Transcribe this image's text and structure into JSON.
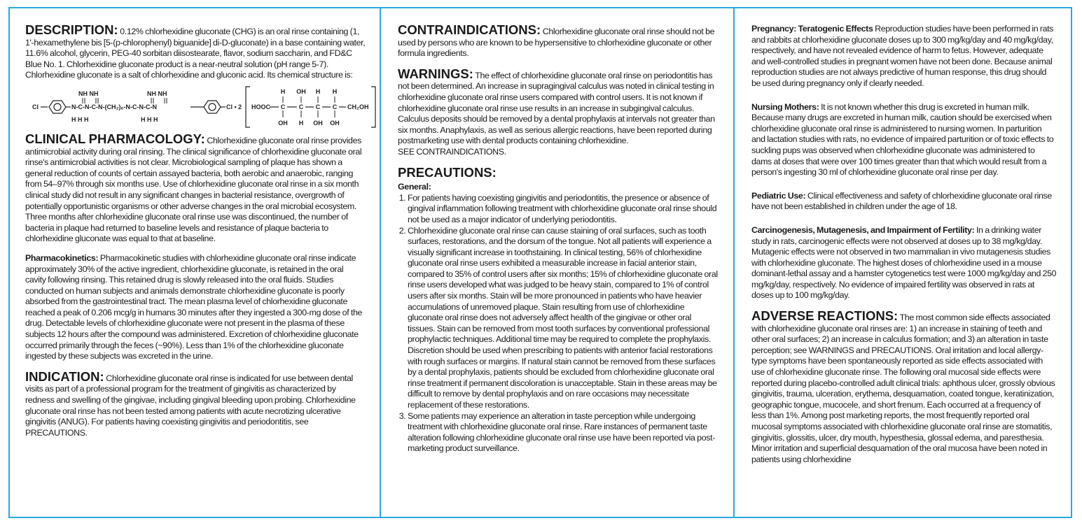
{
  "col1": {
    "description": {
      "heading": "DESCRIPTION:",
      "text": "0.12% chlorhexidine gluconate (CHG) is an oral rinse containing (1, 1'-hexamethylene bis [5-(p-chlorophenyl) biguanide] di-D-gluconate) in a base containing water, 11.6% alcohol, glycerin, PEG-40 sorbitan diisostearate, flavor, sodium saccharin, and FD&C Blue No. 1. Chlorhexidine gluconate product is a near-neutral solution (pH range 5-7). Chlorhexidine gluconate is a salt of chlorhexidine and gluconic acid. Its chemical structure is:"
    },
    "chemical_structure": {
      "left_chain": "Cl–C6H4–N–C–N–C–N–(CH2)6–N–C–N–C–N–C6H4–Cl • 2",
      "bracket": "HOOC–C–C–C–C–CH2OH",
      "labels": {
        "nh": "NH",
        "h": "H",
        "cl": "Cl",
        "ch2": "(CH",
        "ch2_sub": "2",
        "ch2_6": ")6",
        "dot2": "Cl • 2",
        "hooc": "HOOC",
        "ch2oh": "CH2OH",
        "oh": "OH",
        "c": "C",
        "n": "N"
      }
    },
    "clinical_pharmacology": {
      "heading": "CLINICAL PHARMACOLOGY:",
      "text": "Chlorhexidine gluconate oral rinse provides antimicrobial activity during oral rinsing. The clinical significance of chlorhexidine gluconate oral rinse's antimicrobial activities is not clear. Microbiological sampling of plaque has shown a general reduction of counts of certain assayed bacteria, both aerobic and anaerobic, ranging from 54–97% through six months use. Use of chlorhexidine gluconate oral rinse in a six month clinical study did not result in any significant changes in bacterial resistance, overgrowth of potentially opportunistic organisms or other adverse changes in the oral microbial ecosystem. Three months after chlorhexidine gluconate oral rinse use was discontinued, the number of bacteria in plaque had returned to baseline levels and resistance of plaque bacteria to chlorhexidine gluconate was equal to that at baseline."
    },
    "pharmacokinetics": {
      "heading": "Pharmacokinetics:",
      "text": "Pharmacokinetic studies with chlorhexidine gluconate oral rinse indicate approximately 30% of the active ingredient, chlorhexidine gluconate, is retained in the oral cavity following rinsing. This retained drug is slowly released into the oral fluids. Studies conducted on human subjects and animals demonstrate chlorhexidine gluconate is poorly absorbed from the gastrointestinal tract. The mean plasma level of chlorhexidine gluconate reached a peak of 0.206 mcg/g in humans 30 minutes after they ingested a 300-mg dose of the drug. Detectable levels of chlorhexidine gluconate were not present in the plasma of these subjects 12 hours after the compound was administered. Excretion of chlorhexidine gluconate occurred primarily through the feces (~90%). Less than 1% of the chlorhexidine gluconate ingested by these subjects was excreted in the urine."
    },
    "indication": {
      "heading": "INDICATION:",
      "text": "Chlorhexidine gluconate oral rinse is indicated for use between dental visits as part of a professional program for the treatment of gingivitis as characterized by redness and swelling of the gingivae, including gingival bleeding upon probing. Chlorhexidine gluconate oral rinse has not been tested among patients with acute necrotizing ulcerative gingivitis (ANUG). For patients having coexisting gingivitis and periodontitis, see PRECAUTIONS."
    }
  },
  "col2": {
    "contraindications": {
      "heading": "CONTRAINDICATIONS:",
      "text": "Chlorhexidine gluconate oral rinse should not be used by persons who are known to be hypersensitive to chlorhexidine gluconate or other formula ingredients."
    },
    "warnings": {
      "heading": "WARNINGS:",
      "text": "The effect of chlorhexidine gluconate oral rinse on periodontitis has not been determined. An increase in supragingival calculus was noted in clinical testing in chlorhexidine gluconate oral rinse users compared with control users. It is not known if chlorhexidine gluconate oral rinse use results in an increase in subgingival calculus. Calculus deposits should be removed by a dental prophylaxis at intervals not greater than six months. Anaphylaxis, as well as serious allergic reactions, have been reported during postmarketing use with dental products containing chlorhexidine.",
      "see": "SEE CONTRAINDICATIONS."
    },
    "precautions": {
      "heading": "PRECAUTIONS:",
      "general": "General:",
      "items": [
        "For patients having coexisting gingivitis and periodontitis, the presence or absence of gingival inflammation following treatment with chlorhexidine gluconate oral rinse should not be used as a major indicator of underlying periodontitis.",
        "Chlorhexidine gluconate oral rinse can cause staining of oral surfaces, such as tooth surfaces, restorations, and the dorsum of the tongue. Not all patients will experience a visually significant increase in toothstaining. In clinical testing, 56% of chlorhexidine gluconate oral rinse users exhibited a measurable increase in facial anterior stain, compared to 35% of control users after six months; 15% of chlorhexidine gluconate oral rinse users developed what was judged to be heavy stain, compared to 1% of control users after six months. Stain will be more pronounced in patients who have heavier accumulations of unremoved plaque. Stain resulting from use of chlorhexidine gluconate oral rinse does not adversely affect health of the gingivae or other oral tissues. Stain can be removed from most tooth surfaces by conventional professional prophylactic techniques. Additional time may be required to complete the prophylaxis. Discretion should be used when prescribing to patients with anterior facial restorations with rough surfaces or margins. If natural stain cannot be removed from these surfaces by a dental prophylaxis, patients should be excluded from chlorhexidine gluconate oral rinse treatment if permanent discoloration is unacceptable. Stain in these areas may be difficult to remove by dental prophylaxis and on rare occasions may necessitate replacement of these restorations.",
        "Some patients may experience an alteration in taste perception while undergoing treatment with chlorhexidine gluconate oral rinse. Rare instances of permanent taste alteration following chlorhexidine gluconate oral rinse use have been reported via post-marketing product surveillance."
      ]
    }
  },
  "col3": {
    "pregnancy": {
      "heading": "Pregnancy: Teratogenic Effects",
      "text": "Reproduction studies have been performed in rats and rabbits at chlorhexidine gluconate doses up to 300 mg/kg/day and 40 mg/kg/day, respectively, and have not revealed evidence of harm to fetus. However, adequate and well-controlled studies in pregnant women have not been done. Because animal reproduction studies are not always predictive of human response, this drug should be used during pregnancy only if clearly needed."
    },
    "nursing": {
      "heading": "Nursing Mothers:",
      "text": "It is not known whether this drug is excreted in human milk. Because many drugs are excreted in human milk, caution should be exercised when chlorhexidine gluconate oral rinse is administered to nursing women. In parturition and lactation studies with rats, no evidence of impaired parturition or of toxic effects to suckling pups was observed when chlorhexidine gluconate was administered to dams at doses that were over 100 times greater than that which would result from a person's ingesting 30 ml of chlorhexidine gluconate oral rinse per day."
    },
    "pediatric": {
      "heading": "Pediatric Use:",
      "text": "Clinical effectiveness and safety of chlorhexidine gluconate oral rinse have not been established in children under the age of 18."
    },
    "carcinogenesis": {
      "heading": "Carcinogenesis, Mutagenesis, and Impairment of Fertility:",
      "text": "In a drinking water study in rats, carcinogenic effects were not observed at doses up to 38 mg/kg/day. Mutagenic effects were not observed in two mammalian in vivo mutagenesis studies with chlorhexidine gluconate. The highest doses of chlorhexidine used in a mouse dominant-lethal assay and a hamster cytogenetics test were 1000 mg/kg/day and 250 mg/kg/day, respectively. No evidence of impaired fertility was observed in rats at doses up to 100 mg/kg/day."
    },
    "adverse": {
      "heading": "ADVERSE REACTIONS:",
      "text": "The most common side effects associated with chlorhexidine gluconate oral rinses are: 1) an increase in staining of teeth and other oral surfaces; 2) an increase in calculus formation; and 3) an alteration in taste perception; see WARNINGS and PRECAUTIONS. Oral irritation and local allergy-type symptoms have been spontaneously reported as side effects associated with use of chlorhexidine gluconate rinse. The following oral mucosal side effects were reported during placebo-controlled adult clinical trials: aphthous ulcer, grossly obvious gingivitis, trauma, ulceration, erythema, desquamation, coated tongue, keratinization, geographic tongue, mucocele, and short frenum. Each occurred at a frequency of less than 1%. Among post marketing reports, the most frequently reported oral mucosal symptoms associated with chlorhexidine gluconate oral rinse are stomatitis, gingivitis, glossitis, ulcer, dry mouth, hypesthesia, glossal edema, and paresthesia. Minor irritation and superficial desquamation of the oral mucosa have been noted in patients using chlorhexidine"
    }
  },
  "colors": {
    "border": "#29a8e0",
    "text": "#1a1a1a"
  }
}
